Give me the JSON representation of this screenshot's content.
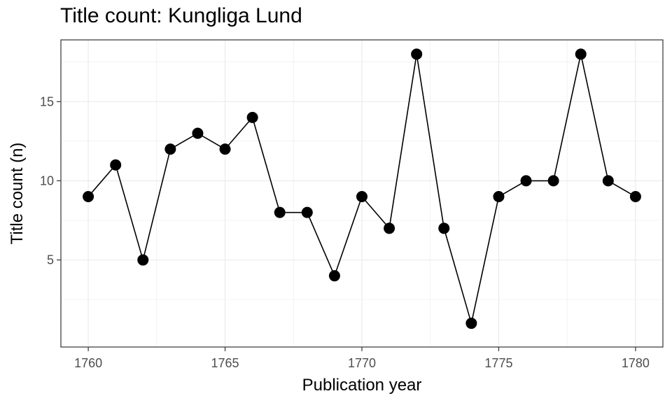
{
  "chart_data": {
    "type": "line",
    "title": "Title count: Kungliga Lund",
    "xlabel": "Publication year",
    "ylabel": "Title count (n)",
    "x": [
      1760,
      1761,
      1762,
      1763,
      1764,
      1765,
      1766,
      1767,
      1768,
      1769,
      1770,
      1771,
      1772,
      1773,
      1774,
      1775,
      1776,
      1777,
      1778,
      1779,
      1780
    ],
    "series": [
      {
        "name": "Kungliga Lund",
        "values": [
          9,
          11,
          5,
          12,
          13,
          12,
          14,
          8,
          8,
          4,
          9,
          7,
          18,
          7,
          1,
          9,
          10,
          10,
          18,
          10,
          9
        ]
      }
    ],
    "xlim": [
      1759,
      1781
    ],
    "ylim": [
      -0.5,
      18.9
    ],
    "xticks": [
      1760,
      1765,
      1770,
      1775,
      1780
    ],
    "xtick_labels": [
      "1760",
      "1765",
      "1770",
      "1775",
      "1780"
    ],
    "yticks": [
      5,
      10,
      15
    ],
    "ytick_labels": [
      "5",
      "10",
      "15"
    ],
    "grid": true,
    "colors": {
      "line": "#000000",
      "point": "#000000",
      "grid": "#ebebeb",
      "border": "#333333",
      "tick_label": "#4d4d4d"
    }
  }
}
